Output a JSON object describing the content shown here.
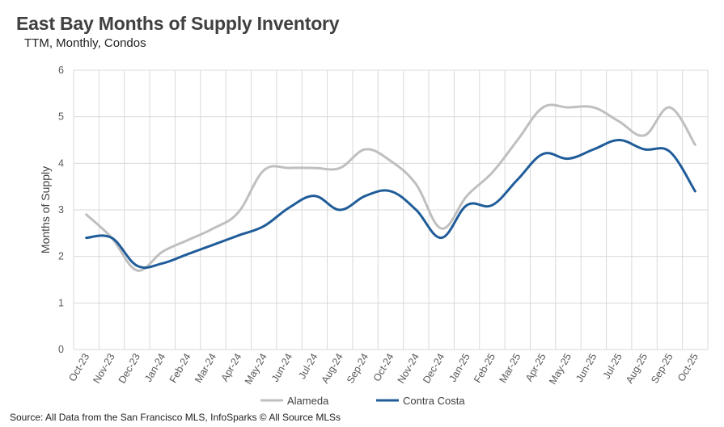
{
  "title": "East Bay Months of Supply Inventory",
  "subtitle": "TTM, Monthly, Condos",
  "source": "Source: All Data from the San Francisco MLS, InfoSparks © All Source MLSs",
  "chart_data": {
    "type": "line",
    "ylabel": "Months of Supply",
    "xlabel": "",
    "ylim": [
      0,
      6
    ],
    "yticks": [
      0,
      1,
      2,
      3,
      4,
      5,
      6
    ],
    "grid": true,
    "legend_position": "bottom",
    "categories": [
      "Oct-23",
      "Nov-23",
      "Dec-23",
      "Jan-24",
      "Feb-24",
      "Mar-24",
      "Apr-24",
      "May-24",
      "Jun-24",
      "Jul-24",
      "Aug-24",
      "Sep-24",
      "Oct-24",
      "Nov-24",
      "Dec-24",
      "Jan-25",
      "Feb-25",
      "Mar-25",
      "Apr-25",
      "May-25",
      "Jun-25",
      "Jul-25",
      "Aug-25",
      "Sep-25",
      "Oct-25"
    ],
    "series": [
      {
        "name": "Alameda",
        "color": "#bfbfbf",
        "values": [
          2.9,
          2.4,
          1.7,
          2.1,
          2.35,
          2.6,
          2.95,
          3.85,
          3.9,
          3.9,
          3.9,
          4.3,
          4.05,
          3.55,
          2.6,
          3.3,
          3.8,
          4.5,
          5.2,
          5.2,
          5.2,
          4.9,
          4.6,
          5.2,
          4.4
        ]
      },
      {
        "name": "Contra Costa",
        "color": "#1f5c99",
        "values": [
          2.4,
          2.4,
          1.8,
          1.85,
          2.05,
          2.25,
          2.45,
          2.65,
          3.05,
          3.3,
          3.0,
          3.3,
          3.4,
          3.0,
          2.4,
          3.1,
          3.1,
          3.65,
          4.2,
          4.1,
          4.3,
          4.5,
          4.3,
          4.25,
          3.4
        ]
      }
    ]
  }
}
